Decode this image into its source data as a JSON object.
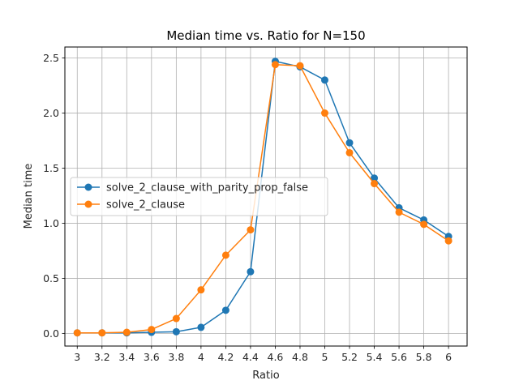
{
  "chart_data": {
    "type": "line",
    "title": "Median time vs. Ratio for N=150",
    "xlabel": "Ratio",
    "ylabel": "Median time",
    "x": [
      3,
      3.2,
      3.4,
      3.6,
      3.8,
      4,
      4.2,
      4.4,
      4.6,
      4.8,
      5,
      5.2,
      5.4,
      5.6,
      5.8,
      6
    ],
    "x_tick_labels": [
      "3",
      "3.2",
      "3.4",
      "3.6",
      "3.8",
      "4",
      "4.2",
      "4.4",
      "4.6",
      "4.8",
      "5",
      "5.2",
      "5.4",
      "5.6",
      "5.8",
      "6"
    ],
    "y_ticks": [
      0.0,
      0.5,
      1.0,
      1.5,
      2.0,
      2.5
    ],
    "y_tick_labels": [
      "0.0",
      "0.5",
      "1.0",
      "1.5",
      "2.0",
      "2.5"
    ],
    "xlim": [
      2.9,
      6.15
    ],
    "ylim": [
      -0.115,
      2.6
    ],
    "grid": true,
    "legend_location": "center-left",
    "series": [
      {
        "name": "solve_2_clause_with_parity_prop_false",
        "color": "#1f77b4",
        "values": [
          0.005,
          0.005,
          0.005,
          0.01,
          0.015,
          0.055,
          0.21,
          0.56,
          2.47,
          2.42,
          2.3,
          1.73,
          1.41,
          1.14,
          1.03,
          0.88
        ]
      },
      {
        "name": "solve_2_clause",
        "color": "#ff7f0e",
        "values": [
          0.005,
          0.005,
          0.01,
          0.035,
          0.135,
          0.395,
          0.71,
          0.94,
          2.44,
          2.43,
          2.0,
          1.64,
          1.36,
          1.1,
          0.99,
          0.84
        ]
      }
    ]
  }
}
